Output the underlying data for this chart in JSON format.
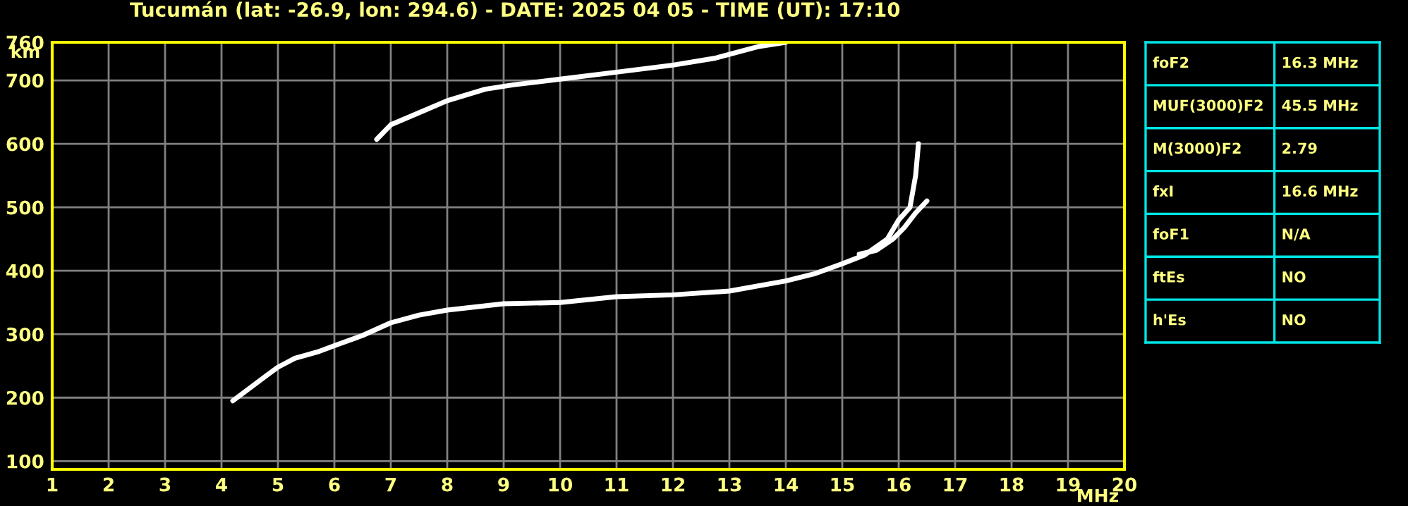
{
  "chart_data": [
    {
      "type": "line",
      "title": "Tucumán (lat: -26.9, lon: 294.6) - DATE: 2025 04 05 - TIME (UT): 17:10",
      "xlabel": "MHz",
      "ylabel": "km",
      "xlim": [
        1,
        20
      ],
      "ylim": [
        87,
        760
      ],
      "xticks": [
        1,
        2,
        3,
        4,
        5,
        6,
        7,
        8,
        9,
        10,
        11,
        12,
        13,
        14,
        15,
        16,
        17,
        18,
        19,
        20
      ],
      "yticks": [
        100,
        200,
        300,
        400,
        500,
        600,
        700,
        760
      ],
      "grid": true,
      "series": [
        {
          "color": "#ffffff",
          "x": [
            4.2,
            4.5,
            4.8,
            5.0,
            5.3,
            5.7,
            6.0,
            6.5,
            7.0,
            7.5,
            8.0,
            8.5,
            9.0,
            10.0,
            11.0,
            12.0,
            13.0,
            14.0,
            14.5,
            15.0,
            15.4,
            15.8,
            16.0,
            16.2,
            16.3,
            16.35
          ],
          "values": [
            195,
            215,
            235,
            248,
            262,
            272,
            282,
            298,
            318,
            330,
            338,
            343,
            348,
            350,
            359,
            362,
            368,
            384,
            395,
            411,
            425,
            450,
            480,
            500,
            550,
            600
          ]
        },
        {
          "color": "#ffffff",
          "x": [
            15.3,
            15.6,
            15.9,
            16.1,
            16.3,
            16.5
          ],
          "values": [
            426,
            432,
            450,
            468,
            491,
            510
          ]
        },
        {
          "color": "#ffffff",
          "x": [
            6.75,
            7.0,
            7.58,
            8.0,
            8.67,
            9.17,
            10.0,
            11.0,
            12.0,
            12.75,
            13.5,
            14.0
          ],
          "values": [
            607,
            630,
            652,
            668,
            686,
            693,
            702,
            713,
            724,
            735,
            753,
            760
          ]
        }
      ]
    },
    {
      "type": "other",
      "annotations": [
        "foF2",
        "16.3 MHz",
        "MUF(3000)F2",
        "45.5 MHz",
        "M(3000)F2",
        "2.79",
        "fxI",
        "16.6 MHz",
        "foF1",
        "N/A",
        "ftEs",
        "NO",
        "h'Es",
        "NO"
      ]
    }
  ]
}
